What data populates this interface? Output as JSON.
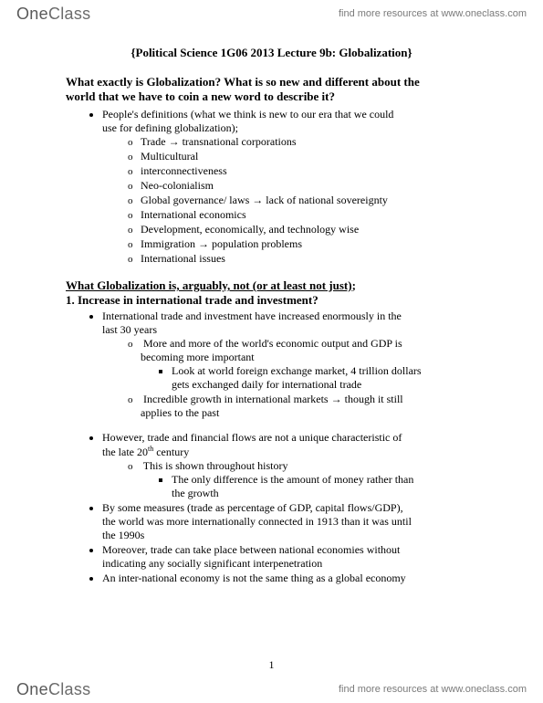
{
  "brand": {
    "part1": "One",
    "part2": "Class"
  },
  "tagline": "find more resources at www.oneclass.com",
  "title": "{Political Science 1G06 2013 Lecture 9b:  Globalization}",
  "q1_line1": "What exactly is Globalization?  What is so new and different about the",
  "q1_line2": "world that we have to coin a new word to describe it?",
  "defs_intro_a": "People's definitions (what we think is new to our era that we could",
  "defs_intro_b": "use for defining globalization);",
  "defs": {
    "d0a": "Trade ",
    "d0b": " transnational corporations",
    "d1": "Multicultural",
    "d2": "interconnectiveness",
    "d3": "Neo-colonialism",
    "d4a": "Global governance/ laws ",
    "d4b": " lack of national sovereignty",
    "d5": "International economics",
    "d6": "Development, economically, and technology wise",
    "d7a": "Immigration ",
    "d7b": " population problems",
    "d8": "International issues"
  },
  "sec2_h": "What Globalization is, arguably, not (or at least not just)",
  "sec2_colon": ";",
  "sec2_sub": "1. Increase in international trade and investment?",
  "p1a": "International trade and investment have increased enormously in the",
  "p1b": "last 30 years",
  "p1_s1a": "More and more of the world's economic output and GDP is",
  "p1_s1b": "becoming more important",
  "p1_s1_t1a": "Look at world foreign exchange market, 4 trillion dollars",
  "p1_s1_t1b": "gets exchanged daily for international trade",
  "p1_s2a": "Incredible growth in international markets ",
  "p1_s2b": " though it still",
  "p1_s2c": "applies to the past",
  "p2a": "However, trade and financial flows are not a unique characteristic of",
  "p2b_pre": "the late 20",
  "p2b_sup": "th",
  "p2b_post": " century",
  "p2_s1": "This is shown throughout history",
  "p2_s1_t1a": "The only difference is the amount of money rather than",
  "p2_s1_t1b": "the growth",
  "p3a": "By some measures (trade as percentage of GDP, capital flows/GDP),",
  "p3b": "the world was more internationally connected in 1913 than it was until",
  "p3c": "the 1990s",
  "p4a": "Moreover, trade can take place between national economies without",
  "p4b": "indicating any socially significant interpenetration",
  "p5": "An inter-national economy is not the same thing as a global economy",
  "page_num": "1",
  "arrow": "→"
}
